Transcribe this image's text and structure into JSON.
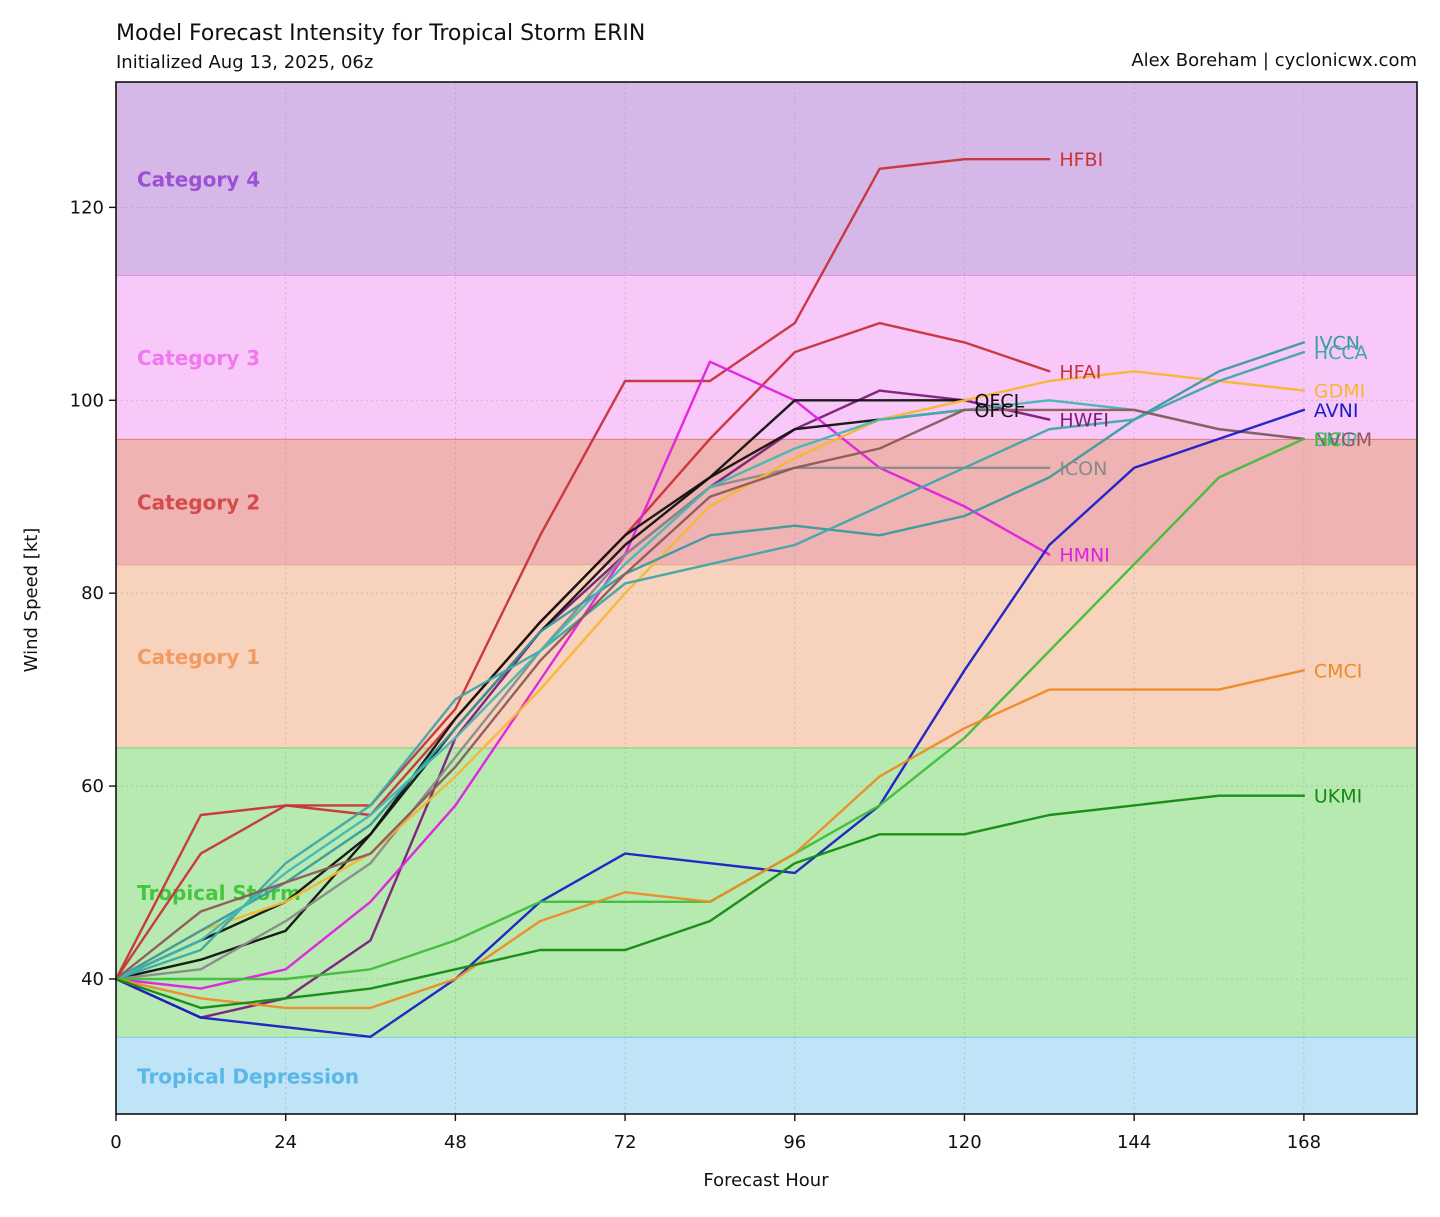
{
  "chart_data": {
    "type": "line",
    "title": "Model Forecast Intensity for Tropical Storm ERIN",
    "subtitle": "Initialized Aug 13, 2025, 06z",
    "credit": "Alex Boreham | cyclonicwx.com",
    "xlabel": "Forecast Hour",
    "ylabel": "Wind Speed [kt]",
    "xlim": [
      0,
      184
    ],
    "ylim": [
      26,
      133
    ],
    "xticks": [
      0,
      24,
      48,
      72,
      96,
      120,
      144,
      168
    ],
    "yticks": [
      40,
      60,
      80,
      100,
      120
    ],
    "grid": true,
    "bands": [
      {
        "label": "Tropical Depression",
        "from": 26,
        "to": 34,
        "fill": "#bfe3f7",
        "edge": "#7dc8e8",
        "text_color": "#5bb8e6"
      },
      {
        "label": "Tropical Storm",
        "from": 34,
        "to": 64,
        "fill": "#b7eab0",
        "edge": "#7ccf7a",
        "text_color": "#45c640"
      },
      {
        "label": "Category 1",
        "from": 64,
        "to": 83,
        "fill": "#f7d3bd",
        "edge": "#e4a98a",
        "text_color": "#f29b61"
      },
      {
        "label": "Category 2",
        "from": 83,
        "to": 96,
        "fill": "#efb3b3",
        "edge": "#e07e7e",
        "text_color": "#d64a4a"
      },
      {
        "label": "Category 3",
        "from": 96,
        "to": 113,
        "fill": "#f8c8f8",
        "edge": "#e28ce0",
        "text_color": "#f277f0"
      },
      {
        "label": "Category 4",
        "from": 113,
        "to": 133,
        "fill": "#d6b8e8",
        "edge": "#bc88d8",
        "text_color": "#9b50d6"
      }
    ],
    "series": [
      {
        "name": "HFBI",
        "color": "#c8323a",
        "x": [
          0,
          12,
          24,
          36,
          48,
          60,
          72,
          84,
          96,
          108,
          120,
          132
        ],
        "values": [
          40,
          53,
          58,
          58,
          68,
          86,
          102,
          102,
          108,
          124,
          125,
          125
        ]
      },
      {
        "name": "HFAI",
        "color": "#c8323a",
        "x": [
          0,
          12,
          24,
          36,
          48,
          60,
          72,
          84,
          96,
          108,
          120,
          132
        ],
        "values": [
          40,
          57,
          58,
          57,
          67,
          77,
          86,
          96,
          105,
          108,
          106,
          103
        ]
      },
      {
        "name": "HWFI",
        "color": "#7a1e7a",
        "x": [
          0,
          12,
          24,
          36,
          48,
          60,
          72,
          84,
          96,
          108,
          120,
          132
        ],
        "values": [
          40,
          36,
          38,
          44,
          65,
          76,
          84,
          91,
          97,
          101,
          100,
          98
        ]
      },
      {
        "name": "HMNI",
        "color": "#e11fe1",
        "x": [
          0,
          12,
          24,
          36,
          48,
          60,
          72,
          84,
          96,
          108,
          120,
          132
        ],
        "values": [
          40,
          39,
          41,
          48,
          58,
          71,
          84,
          104,
          100,
          93,
          89,
          84
        ]
      },
      {
        "name": "OFCL",
        "color": "#111111",
        "x": [
          0,
          12,
          24,
          36,
          48,
          60,
          72,
          84,
          96,
          108,
          120
        ],
        "values": [
          40,
          44,
          48,
          55,
          67,
          77,
          86,
          92,
          100,
          100,
          100
        ]
      },
      {
        "name": "OFCI",
        "color": "#111111",
        "x": [
          0,
          12,
          24,
          36,
          48,
          60,
          72,
          84,
          96,
          108,
          120
        ],
        "values": [
          40,
          42,
          45,
          55,
          66,
          76,
          85,
          92,
          97,
          98,
          99
        ]
      },
      {
        "name": "ICON",
        "color": "#8a8a8a",
        "x": [
          0,
          12,
          24,
          36,
          48,
          60,
          72,
          84,
          96,
          108,
          120,
          132
        ],
        "values": [
          40,
          41,
          46,
          52,
          63,
          74,
          84,
          91,
          93,
          93,
          93,
          93
        ]
      },
      {
        "name": "GDMI",
        "color": "#f6b731",
        "x": [
          0,
          12,
          24,
          36,
          48,
          60,
          72,
          84,
          96,
          108,
          120,
          132,
          144,
          156,
          168
        ],
        "values": [
          40,
          45,
          48,
          53,
          61,
          70,
          80,
          89,
          94,
          98,
          100,
          102,
          103,
          102,
          101
        ]
      },
      {
        "name": "IVCN",
        "color": "#3a9aa0",
        "x": [
          0,
          12,
          24,
          36,
          48,
          60,
          72,
          84,
          96,
          108,
          120,
          132,
          144,
          156,
          168
        ],
        "values": [
          40,
          45,
          50,
          56,
          66,
          76,
          82,
          86,
          87,
          86,
          88,
          92,
          98,
          103,
          106
        ]
      },
      {
        "name": "HCCA",
        "color": "#3fa6a9",
        "x": [
          0,
          12,
          24,
          36,
          48,
          60,
          72,
          84,
          96,
          108,
          120,
          132,
          144,
          156,
          168
        ],
        "values": [
          40,
          43,
          52,
          58,
          69,
          74,
          81,
          83,
          85,
          89,
          93,
          97,
          98,
          102,
          105
        ]
      },
      {
        "name": "SHIP",
        "color": "#42b8b4",
        "x": [
          0,
          12,
          24,
          36,
          48,
          60,
          72,
          84,
          96,
          108,
          120,
          132,
          144,
          156,
          168
        ],
        "values": [
          40,
          44,
          51,
          57,
          65,
          74,
          83,
          91,
          95,
          98,
          99,
          100,
          99,
          97,
          96
        ]
      },
      {
        "name": "NVGM",
        "color": "#8c5a5a",
        "x": [
          0,
          12,
          24,
          36,
          48,
          60,
          72,
          84,
          96,
          108,
          120,
          132,
          144,
          156,
          168
        ],
        "values": [
          40,
          47,
          50,
          53,
          62,
          73,
          82,
          90,
          93,
          95,
          99,
          99,
          99,
          97,
          96
        ]
      },
      {
        "name": "AVNI",
        "color": "#1a1ec8",
        "x": [
          0,
          12,
          24,
          36,
          48,
          60,
          72,
          84,
          96,
          108,
          120,
          132,
          144,
          156,
          168
        ],
        "values": [
          40,
          36,
          35,
          34,
          40,
          48,
          53,
          52,
          51,
          58,
          72,
          85,
          93,
          96,
          99
        ]
      },
      {
        "name": "HC",
        "color": "#3fbe3a",
        "x": [
          0,
          12,
          24,
          36,
          48,
          60,
          72,
          84,
          96,
          108,
          120,
          132,
          144,
          156,
          168
        ],
        "values": [
          40,
          40,
          40,
          41,
          44,
          48,
          48,
          48,
          53,
          58,
          65,
          74,
          83,
          92,
          96
        ]
      },
      {
        "name": "CMCI",
        "color": "#ee8a26",
        "x": [
          0,
          12,
          24,
          36,
          48,
          60,
          72,
          84,
          96,
          108,
          120,
          132,
          144,
          156,
          168
        ],
        "values": [
          40,
          38,
          37,
          37,
          40,
          46,
          49,
          48,
          53,
          61,
          66,
          70,
          70,
          70,
          72
        ]
      },
      {
        "name": "UKMI",
        "color": "#138a13",
        "x": [
          0,
          12,
          24,
          36,
          48,
          60,
          72,
          84,
          96,
          108,
          120,
          132,
          144,
          156,
          168
        ],
        "values": [
          40,
          37,
          38,
          39,
          41,
          43,
          43,
          46,
          52,
          55,
          55,
          57,
          58,
          59,
          59
        ]
      }
    ],
    "end_labels": [
      {
        "text": "HFBI",
        "series": "HFBI",
        "color": "#c8323a"
      },
      {
        "text": "HFAI",
        "series": "HFAI",
        "color": "#c8323a"
      },
      {
        "text": "HWFI",
        "series": "HWFI",
        "color": "#7a1e7a"
      },
      {
        "text": "HMNI",
        "series": "HMNI",
        "color": "#e11fe1"
      },
      {
        "text": "OFCL",
        "series": "OFCL",
        "color": "#111111"
      },
      {
        "text": "OFCI",
        "series": "OFCI",
        "color": "#111111"
      },
      {
        "text": "ICON",
        "series": "ICON",
        "color": "#8a8a8a"
      },
      {
        "text": "IVCN",
        "series": "IVCN",
        "color": "#3a9aa0"
      },
      {
        "text": "HCCA",
        "series": "HCCA",
        "color": "#3fa6a9"
      },
      {
        "text": "SHIP",
        "series": "SHIP",
        "color": "#42b8b4"
      },
      {
        "text": "GDMI",
        "series": "GDMI",
        "color": "#f6b731"
      },
      {
        "text": "AVNI",
        "series": "AVNI",
        "color": "#1a1ec8"
      },
      {
        "text": "NVGM",
        "series": "NVGM",
        "color": "#8c5a5a"
      },
      {
        "text": "HC",
        "series": "HC",
        "color": "#3fbe3a"
      },
      {
        "text": "CMCI",
        "series": "CMCI",
        "color": "#ee8a26"
      },
      {
        "text": "UKMI",
        "series": "UKMI",
        "color": "#138a13"
      }
    ]
  }
}
